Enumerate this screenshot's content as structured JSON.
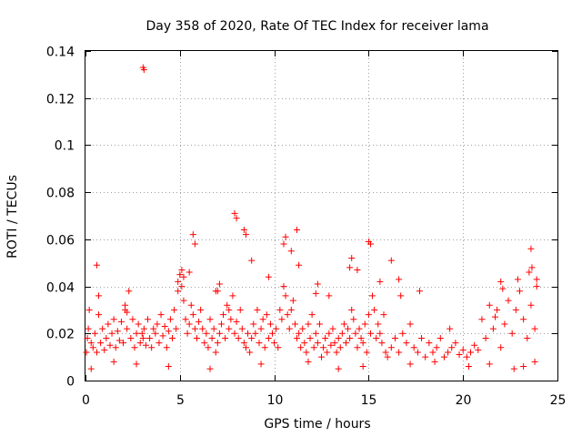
{
  "chart_data": {
    "type": "scatter",
    "title": "Day 358 of 2020, Rate Of TEC Index for receiver lama",
    "xlabel": "GPS time / hours",
    "ylabel": "ROTI / TECUs",
    "xlim": [
      0,
      25
    ],
    "ylim": [
      0,
      0.14
    ],
    "xticks": [
      0,
      5,
      10,
      15,
      20,
      25
    ],
    "xtick_labels": [
      "0",
      "5",
      "10",
      "15",
      "20",
      "25"
    ],
    "yticks": [
      0,
      0.02,
      0.04,
      0.06,
      0.08,
      0.1,
      0.12,
      0.14
    ],
    "ytick_labels": [
      "0",
      "0.02",
      "0.04",
      "0.06",
      "0.08",
      "0.1",
      "0.12",
      "0.14"
    ],
    "grid": true,
    "marker": "plus",
    "marker_color": "#ff0000",
    "series": [
      {
        "name": "ROTI",
        "x": [
          0.05,
          0.1,
          0.15,
          0.2,
          0.3,
          0.4,
          0.5,
          0.6,
          0.7,
          0.8,
          0.9,
          1.0,
          1.1,
          1.2,
          1.3,
          1.4,
          1.5,
          1.6,
          1.7,
          1.8,
          1.9,
          2.0,
          2.1,
          2.2,
          2.3,
          2.4,
          2.5,
          2.6,
          2.7,
          2.8,
          2.9,
          3.0,
          3.05,
          3.1,
          3.2,
          3.3,
          3.4,
          3.5,
          3.6,
          3.7,
          3.8,
          3.9,
          4.0,
          4.1,
          4.2,
          4.3,
          4.4,
          4.5,
          4.6,
          4.7,
          4.8,
          4.9,
          5.0,
          5.1,
          5.2,
          5.3,
          5.4,
          5.5,
          5.6,
          5.7,
          5.8,
          5.9,
          6.0,
          6.1,
          6.2,
          6.3,
          6.4,
          6.5,
          6.6,
          6.7,
          6.8,
          6.9,
          7.0,
          7.1,
          7.2,
          7.3,
          7.4,
          7.5,
          7.6,
          7.7,
          7.8,
          7.9,
          8.0,
          8.1,
          8.2,
          8.3,
          8.4,
          8.5,
          8.6,
          8.7,
          8.8,
          8.9,
          9.0,
          9.1,
          9.2,
          9.3,
          9.4,
          9.5,
          9.6,
          9.7,
          9.8,
          9.9,
          10.0,
          10.1,
          10.2,
          10.3,
          10.4,
          10.5,
          10.6,
          10.7,
          10.8,
          10.9,
          11.0,
          11.1,
          11.2,
          11.3,
          11.4,
          11.5,
          11.6,
          11.7,
          11.8,
          11.9,
          12.0,
          12.1,
          12.2,
          12.3,
          12.4,
          12.5,
          12.6,
          12.7,
          12.8,
          12.9,
          13.0,
          13.1,
          13.2,
          13.3,
          13.4,
          13.5,
          13.6,
          13.7,
          13.8,
          13.9,
          14.0,
          14.1,
          14.2,
          14.3,
          14.4,
          14.5,
          14.6,
          14.7,
          14.8,
          14.9,
          15.0,
          15.1,
          15.2,
          15.3,
          15.4,
          15.5,
          15.6,
          15.7,
          15.8,
          15.9,
          16.0,
          16.2,
          16.4,
          16.6,
          16.8,
          17.0,
          17.2,
          17.4,
          17.6,
          17.8,
          18.0,
          18.2,
          18.4,
          18.6,
          18.8,
          19.0,
          19.2,
          19.4,
          19.6,
          19.8,
          20.0,
          20.2,
          20.4,
          20.6,
          20.8,
          21.0,
          21.2,
          21.4,
          21.6,
          21.8,
          22.0,
          22.2,
          22.4,
          22.6,
          22.8,
          23.0,
          23.2,
          23.4,
          23.6,
          23.8,
          23.9,
          0.6,
          0.7,
          2.1,
          2.2,
          3.05,
          3.1,
          5.1,
          5.2,
          5.7,
          5.8,
          7.0,
          7.1,
          7.9,
          8.0,
          8.4,
          8.5,
          10.5,
          10.6,
          11.2,
          11.3,
          12.2,
          12.3,
          14.0,
          14.1,
          15.0,
          15.1,
          16.6,
          16.7,
          22.0,
          22.1,
          23.5,
          23.6,
          23.65,
          0.3,
          1.5,
          2.7,
          4.4,
          6.6,
          9.3,
          11.8,
          13.4,
          14.7,
          17.2,
          18.5,
          20.3,
          21.4,
          22.7,
          23.2,
          23.8,
          4.9,
          5.5,
          6.9,
          7.6,
          8.8,
          9.7,
          10.9,
          12.9,
          14.4,
          15.6,
          16.2,
          17.7,
          19.3,
          21.7,
          22.9,
          23.9
        ],
        "y": [
          0.012,
          0.018,
          0.022,
          0.03,
          0.016,
          0.014,
          0.02,
          0.012,
          0.028,
          0.016,
          0.022,
          0.013,
          0.018,
          0.024,
          0.015,
          0.02,
          0.026,
          0.014,
          0.021,
          0.017,
          0.025,
          0.016,
          0.03,
          0.022,
          0.038,
          0.018,
          0.026,
          0.014,
          0.02,
          0.024,
          0.016,
          0.02,
          0.018,
          0.022,
          0.015,
          0.026,
          0.018,
          0.014,
          0.022,
          0.02,
          0.024,
          0.016,
          0.028,
          0.019,
          0.023,
          0.014,
          0.021,
          0.026,
          0.018,
          0.03,
          0.022,
          0.038,
          0.045,
          0.04,
          0.034,
          0.026,
          0.02,
          0.024,
          0.032,
          0.028,
          0.022,
          0.018,
          0.025,
          0.03,
          0.022,
          0.016,
          0.02,
          0.014,
          0.026,
          0.018,
          0.022,
          0.012,
          0.016,
          0.02,
          0.024,
          0.028,
          0.018,
          0.032,
          0.022,
          0.026,
          0.036,
          0.02,
          0.025,
          0.018,
          0.03,
          0.022,
          0.016,
          0.014,
          0.02,
          0.012,
          0.018,
          0.024,
          0.02,
          0.03,
          0.016,
          0.022,
          0.026,
          0.014,
          0.028,
          0.018,
          0.024,
          0.02,
          0.016,
          0.022,
          0.014,
          0.03,
          0.026,
          0.04,
          0.036,
          0.028,
          0.022,
          0.03,
          0.034,
          0.024,
          0.018,
          0.02,
          0.014,
          0.022,
          0.016,
          0.012,
          0.024,
          0.018,
          0.028,
          0.014,
          0.02,
          0.016,
          0.024,
          0.01,
          0.014,
          0.018,
          0.012,
          0.02,
          0.015,
          0.022,
          0.016,
          0.012,
          0.018,
          0.014,
          0.02,
          0.024,
          0.016,
          0.022,
          0.018,
          0.03,
          0.026,
          0.02,
          0.014,
          0.022,
          0.018,
          0.016,
          0.024,
          0.012,
          0.028,
          0.02,
          0.036,
          0.03,
          0.018,
          0.024,
          0.02,
          0.016,
          0.028,
          0.012,
          0.01,
          0.014,
          0.018,
          0.012,
          0.02,
          0.016,
          0.024,
          0.014,
          0.012,
          0.018,
          0.01,
          0.016,
          0.012,
          0.014,
          0.018,
          0.01,
          0.012,
          0.014,
          0.016,
          0.011,
          0.013,
          0.01,
          0.012,
          0.015,
          0.013,
          0.026,
          0.018,
          0.032,
          0.022,
          0.03,
          0.014,
          0.024,
          0.034,
          0.02,
          0.03,
          0.038,
          0.026,
          0.018,
          0.032,
          0.022,
          0.04,
          0.049,
          0.036,
          0.032,
          0.029,
          0.133,
          0.132,
          0.047,
          0.044,
          0.062,
          0.058,
          0.038,
          0.041,
          0.071,
          0.069,
          0.064,
          0.062,
          0.058,
          0.061,
          0.064,
          0.049,
          0.037,
          0.041,
          0.048,
          0.052,
          0.059,
          0.058,
          0.043,
          0.036,
          0.042,
          0.039,
          0.046,
          0.056,
          0.048,
          0.005,
          0.008,
          0.007,
          0.006,
          0.005,
          0.007,
          0.008,
          0.005,
          0.006,
          0.007,
          0.008,
          0.006,
          0.007,
          0.005,
          0.006,
          0.008,
          0.042,
          0.046,
          0.038,
          0.03,
          0.051,
          0.044,
          0.055,
          0.036,
          0.047,
          0.042,
          0.051,
          0.038,
          0.022,
          0.027,
          0.043,
          0.043
        ]
      }
    ]
  }
}
